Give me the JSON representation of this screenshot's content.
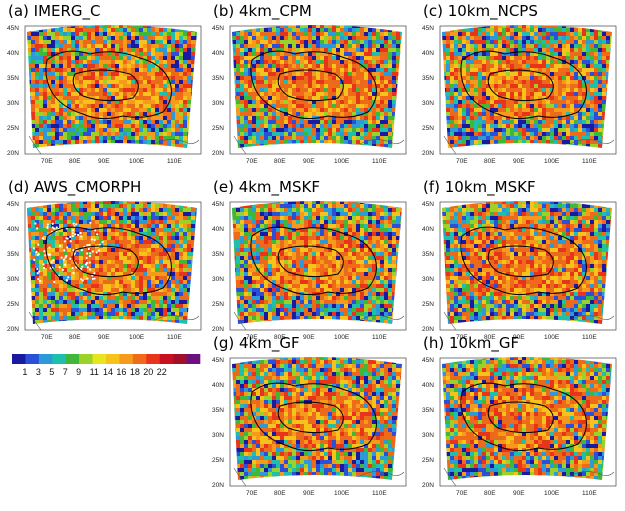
{
  "panels": [
    {
      "title": "(a) IMERG_C"
    },
    {
      "title": "(b) 4km_CPM"
    },
    {
      "title": "(c) 10km_NCPS"
    },
    {
      "title": "(d) AWS_CMORPH"
    },
    {
      "title": "(e) 4km_MSKF"
    },
    {
      "title": "(f) 10km_MSKF"
    },
    {
      "title": "(g) 4km_GF"
    },
    {
      "title": "(h) 10km_GF"
    }
  ],
  "axes": {
    "lat_ticks": [
      "45N",
      "40N",
      "35N",
      "30N",
      "25N",
      "20N"
    ],
    "lon_ticks": [
      "70E",
      "80E",
      "90E",
      "100E",
      "110E"
    ]
  },
  "colorbar": {
    "labels": [
      "1",
      "3",
      "5",
      "7",
      "9",
      "11",
      "14",
      "16",
      "18",
      "20",
      "22"
    ],
    "colors": [
      "#1a1aa0",
      "#2a4fd8",
      "#2c9ad8",
      "#1fbfae",
      "#3fb83a",
      "#9ad22a",
      "#e6e620",
      "#f7c31a",
      "#f59a1a",
      "#f06a1a",
      "#e8341a",
      "#c8101e",
      "#a0102a",
      "#6a1080"
    ]
  },
  "map_colors": {
    "warm": [
      "#f59a1a",
      "#f06a1a",
      "#e8341a",
      "#f7c31a",
      "#e86a1a"
    ],
    "cool": [
      "#2a4fd8",
      "#2c9ad8",
      "#1fbfae",
      "#3fb83a",
      "#9ad22a",
      "#1a1aa0"
    ],
    "plateau_outline": "#000000",
    "white_dots": "#ffffff"
  }
}
